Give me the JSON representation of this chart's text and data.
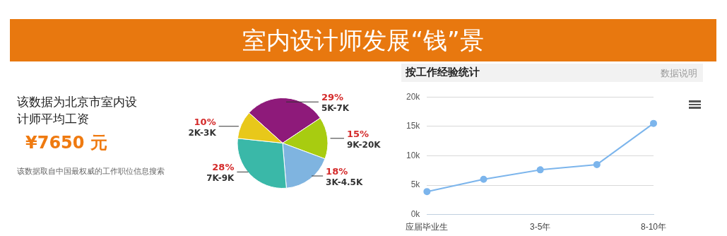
{
  "chart_data": [
    {
      "type": "other",
      "title": "室内设计师发展“钱”景",
      "subtitle": "该数据为北京市室内设计师平均工资",
      "annotations": [
        "¥7650 元",
        "该数据取自中国最权威的工作职位信息搜索"
      ]
    },
    {
      "type": "pie",
      "categories": [
        "5K-7K",
        "9K-20K",
        "3K-4.5K",
        "7K-9K",
        "2K-3K"
      ],
      "values": [
        29,
        15,
        18,
        28,
        10
      ],
      "colors": [
        "#8e1a7a",
        "#a8cc10",
        "#7fb4e0",
        "#3ab8a8",
        "#e8c81a"
      ],
      "value_labels": [
        "29%",
        "15%",
        "18%",
        "28%",
        "10%"
      ],
      "legend": false
    },
    {
      "type": "line",
      "title": "按工作经验统计",
      "annotations": [
        "数据说明"
      ],
      "categories": [
        "应届毕业生",
        null,
        "3-5年",
        null,
        "8-10年"
      ],
      "series": [
        {
          "color": "#7cb5ec",
          "values": [
            3.9,
            6.0,
            7.6,
            8.5,
            15.5
          ]
        }
      ],
      "ylim": [
        0,
        20
      ],
      "yticks": [
        {
          "value": 0,
          "label": "0k"
        },
        {
          "value": 5,
          "label": "5k"
        },
        {
          "value": 10,
          "label": "10k"
        },
        {
          "value": 15,
          "label": "15k"
        },
        {
          "value": 20,
          "label": "20k"
        }
      ],
      "grid": "y",
      "marker": "circle",
      "legend": false
    }
  ]
}
